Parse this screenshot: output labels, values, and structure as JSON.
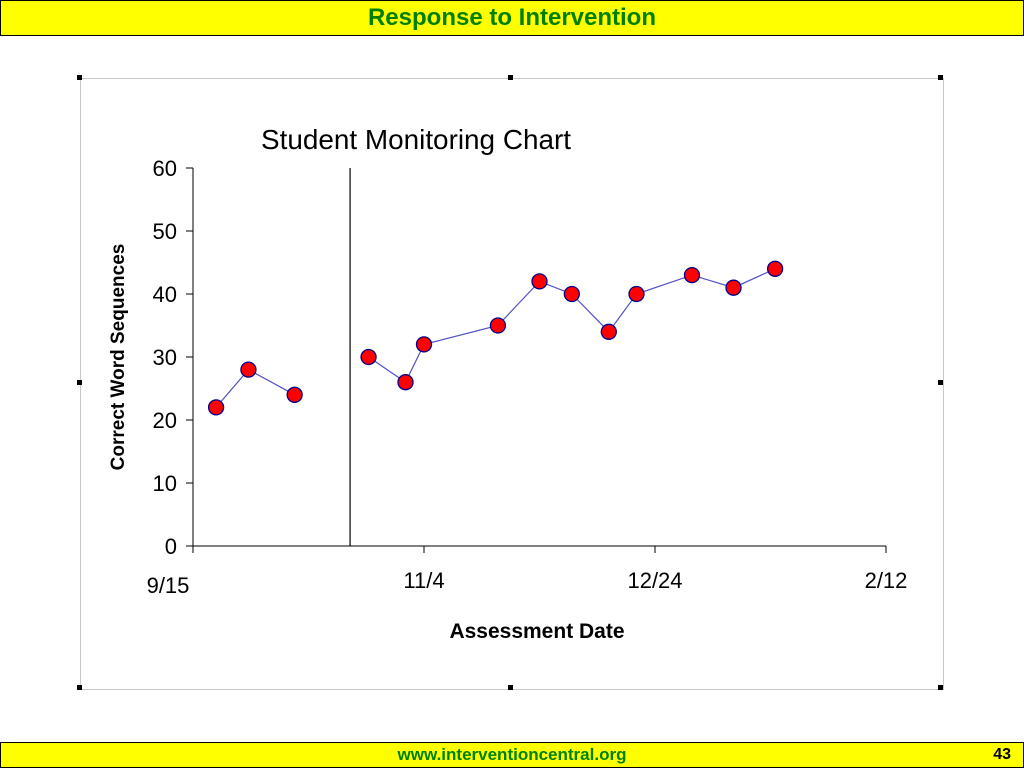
{
  "header": {
    "title": "Response to Intervention"
  },
  "footer": {
    "url": "www.interventioncentral.org",
    "page_number": "43"
  },
  "colors": {
    "banner_bg": "#ffff00",
    "banner_text": "#008000",
    "marker_fill": "#ff0000",
    "marker_stroke": "#00008b",
    "line": "#5050c8"
  },
  "chart_data": {
    "type": "line",
    "title": "Student Monitoring Chart",
    "xlabel": "Assessment Date",
    "ylabel": "Correct Word Sequences",
    "x_ticks": [
      "9/15",
      "11/4",
      "12/24",
      "2/12"
    ],
    "ylim": [
      0,
      60
    ],
    "y_ticks": [
      0,
      10,
      20,
      30,
      40,
      50,
      60
    ],
    "xlim": [
      "9/15",
      "2/12"
    ],
    "grid": false,
    "phase_change_line": "10/19",
    "series": [
      {
        "segment": "baseline",
        "x": [
          "9/20",
          "9/27",
          "10/7"
        ],
        "y": [
          22,
          28,
          24
        ]
      },
      {
        "segment": "intervention",
        "x": [
          "10/23",
          "10/31",
          "11/4",
          "11/20",
          "11/29",
          "12/6",
          "12/14",
          "12/20",
          "1/1",
          "1/10",
          "1/19"
        ],
        "y": [
          30,
          26,
          32,
          35,
          42,
          40,
          34,
          40,
          43,
          41,
          44
        ]
      }
    ]
  }
}
